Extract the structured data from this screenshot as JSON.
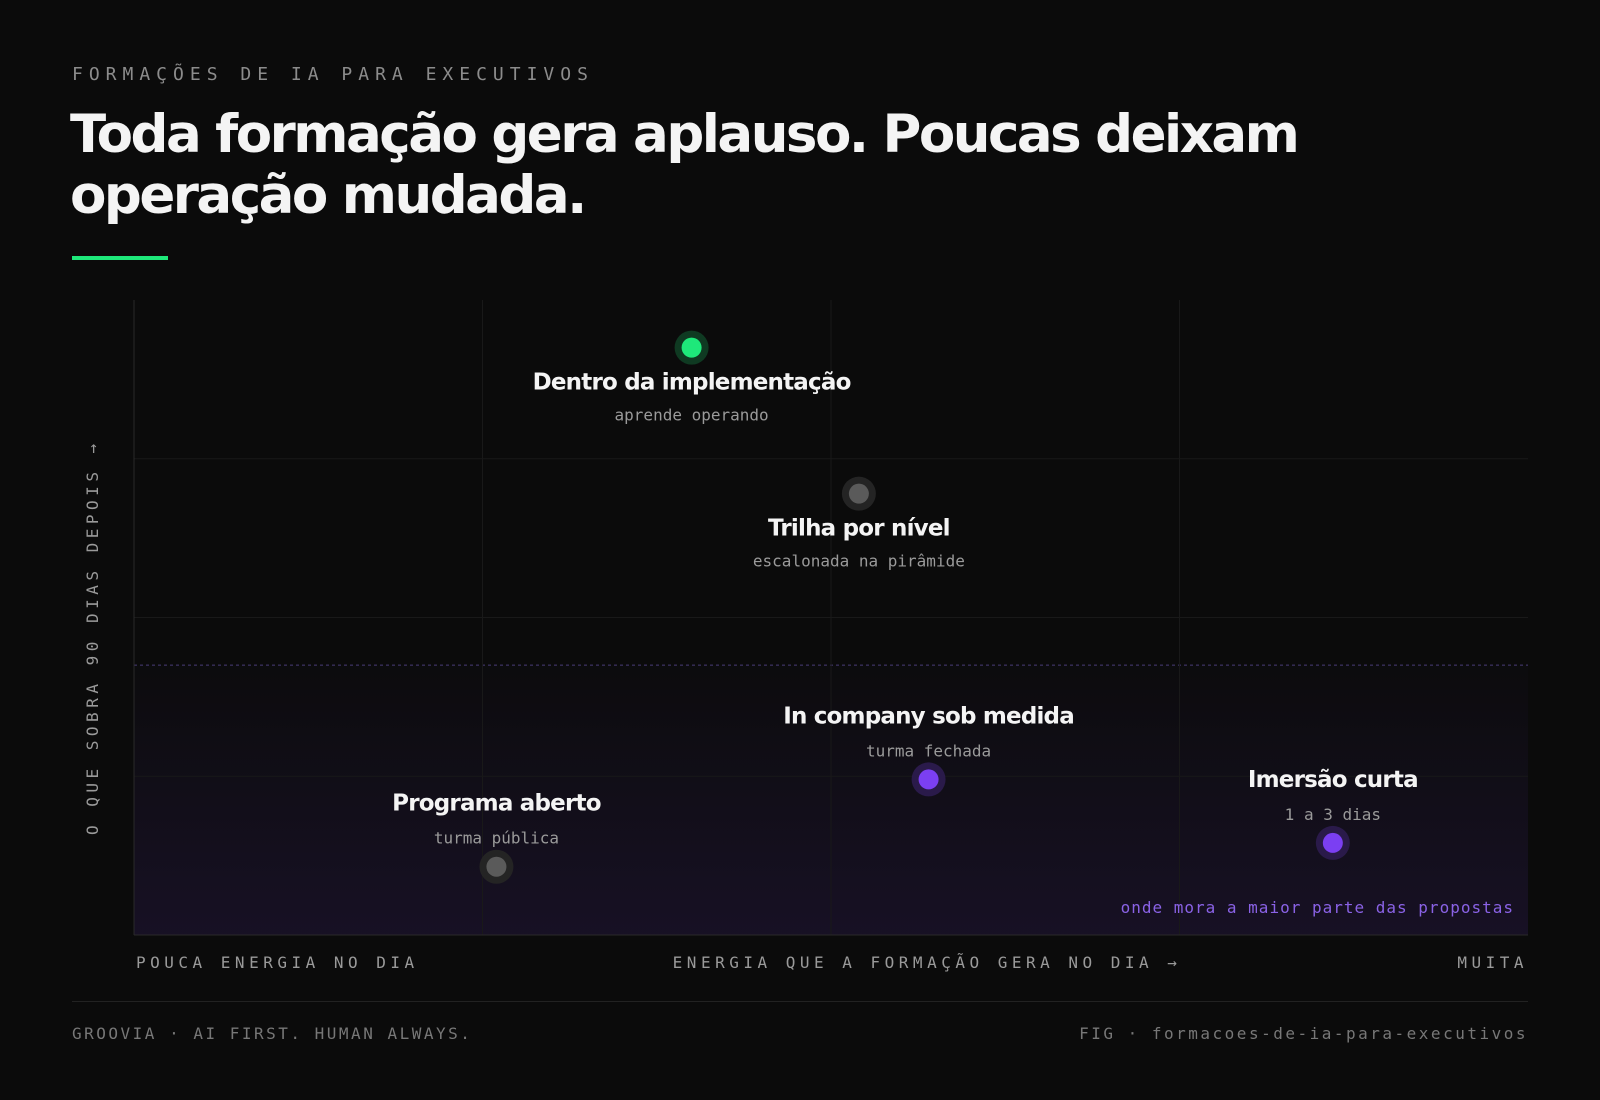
{
  "kicker": "FORMAÇÕES DE IA PARA EXECUTIVOS",
  "headline": "Toda formação gera aplauso. Poucas deixam operação mudada.",
  "colors": {
    "accent": "#1ee87a",
    "purple": "#7b3ff2",
    "gray": "#5a5a5a",
    "background": "#0b0b0b"
  },
  "chart_data": {
    "type": "scatter",
    "xlabel": "ENERGIA QUE A FORMAÇÃO GERA NO DIA",
    "xlabel_arrow": "→",
    "x_low_label": "POUCA ENERGIA NO DIA",
    "x_high_label": "MUITA",
    "ylabel": "O QUE SOBRA 90 DIAS DEPOIS",
    "ylabel_arrow": "→",
    "xlim": [
      0,
      4
    ],
    "ylim": [
      0,
      4
    ],
    "grid": true,
    "region": {
      "label": "onde mora a maior parte das propostas",
      "y_from": 0,
      "y_to": 1.7
    },
    "points": [
      {
        "name": "Dentro da implementação",
        "sub": "aprende operando",
        "x": 1.6,
        "y": 3.7,
        "color": "green",
        "label_pos": "below"
      },
      {
        "name": "Trilha por nível",
        "sub": "escalonada na pirâmide",
        "x": 2.08,
        "y": 2.78,
        "color": "gray",
        "label_pos": "below"
      },
      {
        "name": "In company sob medida",
        "sub": "turma fechada",
        "x": 2.28,
        "y": 0.98,
        "color": "purple",
        "label_pos": "above"
      },
      {
        "name": "Imersão curta",
        "sub": "1 a 3 dias",
        "x": 3.44,
        "y": 0.58,
        "color": "purple",
        "label_pos": "above"
      },
      {
        "name": "Programa aberto",
        "sub": "turma pública",
        "x": 1.04,
        "y": 0.43,
        "color": "gray",
        "label_pos": "above"
      }
    ]
  },
  "footer": {
    "left": "GROOVIA · AI FIRST. HUMAN ALWAYS.",
    "right": "FIG · formacoes-de-ia-para-executivos"
  }
}
